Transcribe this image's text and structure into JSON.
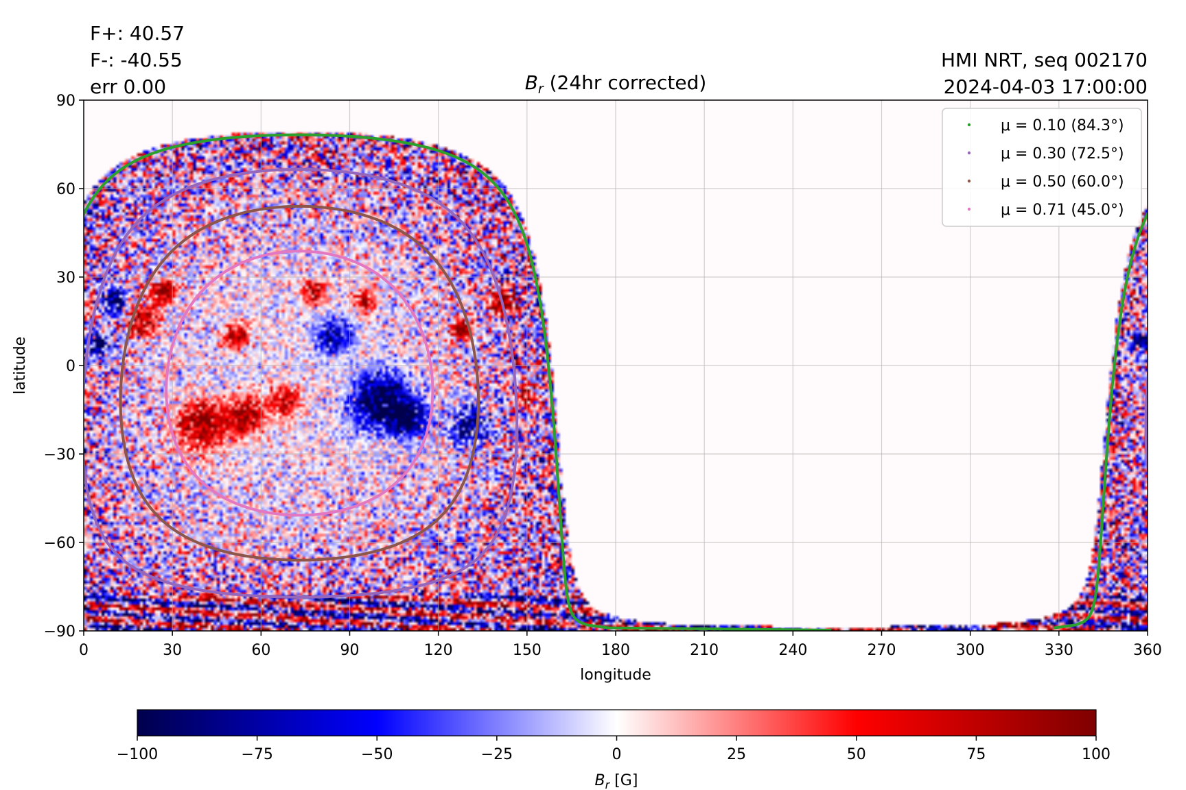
{
  "header": {
    "flux_pos": "F+: 40.57",
    "flux_neg": "F-: -40.55",
    "err": "err 0.00",
    "source": "HMI NRT, seq 002170",
    "timestamp": "2024-04-03 17:00:00"
  },
  "chart_data": {
    "type": "heatmap",
    "title_base": "B",
    "title_sub": "r",
    "title_rest": " (24hr corrected)",
    "xlabel": "longitude",
    "ylabel": "latitude",
    "xlim": [
      0,
      360
    ],
    "ylim": [
      -90,
      90
    ],
    "xticks": [
      0,
      30,
      60,
      90,
      120,
      150,
      180,
      210,
      240,
      270,
      300,
      330,
      360
    ],
    "yticks": [
      90,
      60,
      30,
      0,
      -30,
      -60,
      -90
    ],
    "ytick_labels": [
      "90",
      "60",
      "30",
      "0",
      "−30",
      "−60",
      "−90"
    ],
    "grid": true,
    "legend_placement": "upper-right",
    "disk_center": {
      "lon": 73,
      "lat": -6
    },
    "contours": [
      {
        "label": "μ = 0.10 (84.3°)",
        "color": "#2ca02c",
        "mu": 0.1
      },
      {
        "label": "μ = 0.30 (72.5°)",
        "color": "#9467bd",
        "mu": 0.3
      },
      {
        "label": "μ = 0.50 (60.0°)",
        "color": "#8c564b",
        "mu": 0.5
      },
      {
        "label": "μ = 0.71 (45.0°)",
        "color": "#e377c2",
        "mu": 0.71
      }
    ],
    "colorbar": {
      "min": -100,
      "max": 100,
      "ticks": [
        -100,
        -75,
        -50,
        -25,
        0,
        25,
        50,
        75,
        100
      ],
      "tick_labels": [
        "−100",
        "−75",
        "−50",
        "−25",
        "0",
        "25",
        "50",
        "75",
        "100"
      ],
      "label_base": "B",
      "label_sub": "r",
      "label_rest": " [G]",
      "colormap": "seismic",
      "colors": [
        "#00004c",
        "#0000ff",
        "#ffffff",
        "#ff0000",
        "#7f0000"
      ]
    }
  }
}
